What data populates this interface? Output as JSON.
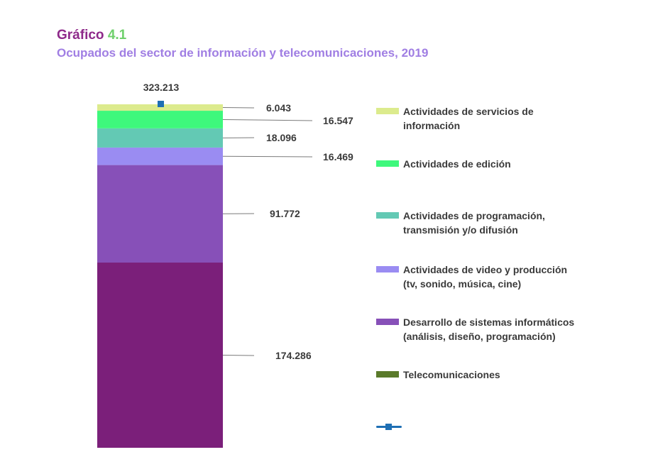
{
  "header": {
    "title_prefix": "Gráfico",
    "title_number": "4.1",
    "subtitle": "Ocupados del sector de información y telecomunicaciones, 2019"
  },
  "chart_data": {
    "type": "bar",
    "stacked": true,
    "categories": [
      ""
    ],
    "total": {
      "value": 323213,
      "label": "323.213",
      "color": "#1e6fb4"
    },
    "series": [
      {
        "name": "Desarrollo de sistemas informáticos\n(análisis, diseño, programación)",
        "values": [
          174286
        ],
        "label": "174.286",
        "color": "#7b1f7a"
      },
      {
        "name": "Actividades de video y producción\n(tv, sonido, música, cine)",
        "values": [
          91772
        ],
        "label": "91.772",
        "color": "#8750b8"
      },
      {
        "name": "Actividades de programación,\ntransmisión y/o difusión",
        "values": [
          16469
        ],
        "label": "16.469",
        "color": "#9a8cf2"
      },
      {
        "name": "Actividades de edición",
        "values": [
          18096
        ],
        "label": "18.096",
        "color": "#63c9b4"
      },
      {
        "name": "Actividades de servicios de\ninformación",
        "values": [
          16547
        ],
        "label": "16.547",
        "color": "#3ef87c"
      },
      {
        "name": "Telecomunicaciones",
        "values": [
          6043
        ],
        "label": "6.043",
        "color": "#dceb8d"
      }
    ],
    "legend": [
      {
        "label": "Actividades de servicios de\ninformación",
        "color": "#dceb8d"
      },
      {
        "label": "Actividades de edición",
        "color": "#3ef87c"
      },
      {
        "label": "Actividades de programación,\ntransmisión y/o difusión",
        "color": "#63c9b4"
      },
      {
        "label": "Actividades de video y producción\n(tv, sonido, música, cine)",
        "color": "#9a8cf2"
      },
      {
        "label": "Desarrollo de sistemas informáticos\n(análisis, diseño, programación)",
        "color": "#8750b8"
      },
      {
        "label": "Telecomunicaciones",
        "color": "#5a7a2a"
      }
    ],
    "legend_placement": "right",
    "grid": false
  }
}
